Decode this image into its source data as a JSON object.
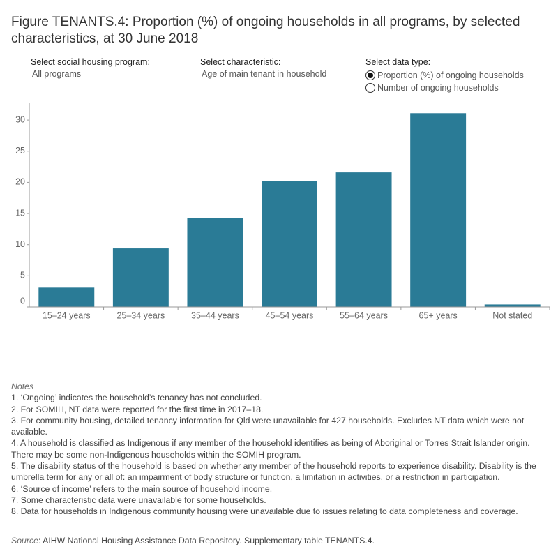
{
  "title": "Figure TENANTS.4: Proportion (%) of ongoing households in all programs, by selected characteristics, at 30 June 2018",
  "controls": [
    {
      "label": "Select social housing program:",
      "value": "All programs"
    },
    {
      "label": "Select characteristic:",
      "value": "Age of main tenant in household"
    },
    {
      "label": "Select data type:",
      "options": [
        "Proportion (%) of ongoing households",
        "Number of ongoing households"
      ],
      "selected": 0
    }
  ],
  "chart_data": {
    "type": "bar",
    "categories": [
      "15–24 years",
      "25–34 years",
      "35–44 years",
      "45–54 years",
      "55–64 years",
      "65+ years",
      "Not stated"
    ],
    "values": [
      3.1,
      9.4,
      14.3,
      20.2,
      21.6,
      31.1,
      0.4
    ],
    "color": "#2a7b96",
    "ylim": [
      0,
      32.7
    ],
    "yticks": [
      0,
      5,
      10,
      15,
      20,
      25,
      30
    ],
    "grid": false
  },
  "notes": {
    "heading": "Notes",
    "items": [
      "1. ‘Ongoing’ indicates the household’s tenancy has not concluded.",
      "2. For SOMIH, NT data were reported for the first time in 2017–18.",
      "3. For community housing, detailed tenancy information for Qld were unavailable for 427 households. Excludes NT data which were not available.",
      "4. A household is classified as Indigenous if any member of the household identifies as being of Aboriginal or Torres Strait Islander origin. There may be some non-Indigenous households within the SOMIH program.",
      "5. The disability status of the household is based on whether any member of the household reports to experience disability. Disability is the umbrella term for any or all of: an impairment of body structure or function, a limitation in activities, or a restriction in participation.",
      "6. ‘Source of income’ refers to the main source of household income.",
      "7. Some characteristic data were unavailable for some households.",
      "8. Data for households in Indigenous community housing were unavailable due to issues relating to data completeness and coverage."
    ]
  },
  "source": {
    "label": "Source",
    "text": ": AIHW National Housing Assistance Data Repository. Supplementary table TENANTS.4."
  }
}
